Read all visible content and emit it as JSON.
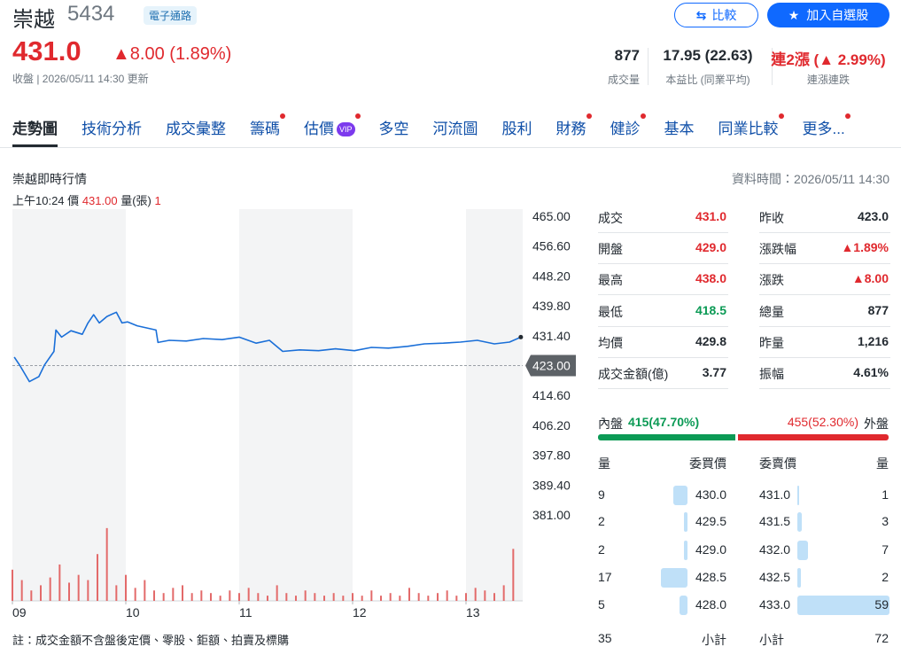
{
  "header": {
    "name": "崇越",
    "code": "5434",
    "tag": "電子通路",
    "price": "431.0",
    "change": "▲8.00 (1.89%)",
    "status": "收盤 | 2026/05/11 14:30 更新",
    "compare": "比較",
    "watch": "加入自選股",
    "stats": [
      {
        "value": "877",
        "label": "成交量"
      },
      {
        "value": "17.95 (22.63)",
        "label": "本益比 (同業平均)"
      },
      {
        "value": "連2漲 (▲ 2.99%)",
        "label": "連漲連跌"
      }
    ]
  },
  "tabs": [
    {
      "label": "走勢圖",
      "active": true
    },
    {
      "label": "技術分析"
    },
    {
      "label": "成交彙整"
    },
    {
      "label": "籌碼",
      "dot": true
    },
    {
      "label": "估價",
      "badge": "VIP",
      "dot": true
    },
    {
      "label": "多空"
    },
    {
      "label": "河流圖"
    },
    {
      "label": "股利"
    },
    {
      "label": "財務",
      "dot": true
    },
    {
      "label": "健診",
      "dot": true
    },
    {
      "label": "基本"
    },
    {
      "label": "同業比較",
      "dot": true
    },
    {
      "label": "更多...",
      "dot": true
    }
  ],
  "section": {
    "title": "崇越即時行情",
    "time": "資料時間：2026/05/11 14:30"
  },
  "hover": {
    "time": "上午10:24",
    "price_label": "價",
    "price": "431.00",
    "vol_label": "量(張)",
    "vol": "1"
  },
  "chart_data": {
    "type": "line",
    "xlim": [
      0,
      270
    ],
    "xticks": [
      {
        "value": 0,
        "label": "09"
      },
      {
        "value": 60,
        "label": "10"
      },
      {
        "value": 120,
        "label": "11"
      },
      {
        "value": 180,
        "label": "12"
      },
      {
        "value": 240,
        "label": "13"
      }
    ],
    "ylim": [
      381,
      465
    ],
    "yticks": [
      {
        "value": 465,
        "label": "465.00"
      },
      {
        "value": 456.6,
        "label": "456.60"
      },
      {
        "value": 448.2,
        "label": "448.20"
      },
      {
        "value": 439.8,
        "label": "439.80"
      },
      {
        "value": 431.4,
        "label": "431.40"
      },
      {
        "value": 423,
        "label": "423.00"
      },
      {
        "value": 414.6,
        "label": "414.60"
      },
      {
        "value": 406.2,
        "label": "406.20"
      },
      {
        "value": 397.8,
        "label": "397.80"
      },
      {
        "value": 389.4,
        "label": "389.40"
      },
      {
        "value": 381,
        "label": "381.00"
      }
    ],
    "ref_line": 423,
    "y2lim": [
      0,
      30
    ],
    "series": [
      {
        "color": "#1a6fd8",
        "x": [
          1,
          4,
          9,
          14,
          17,
          22,
          23,
          26,
          31,
          37,
          40,
          43,
          46,
          50,
          55,
          58,
          61,
          66,
          71,
          76,
          77,
          83,
          92,
          101,
          111,
          120,
          129,
          136,
          143,
          152,
          162,
          171,
          181,
          190,
          199,
          209,
          218,
          228,
          237,
          246,
          255,
          263,
          269
        ],
        "values": [
          425.4,
          423,
          418.5,
          419.9,
          423.2,
          427,
          433,
          431,
          432.8,
          431.8,
          435,
          437.3,
          435,
          436.8,
          438,
          435,
          435.3,
          434.2,
          433.6,
          433,
          429.5,
          430.1,
          429.9,
          430.6,
          430.3,
          431,
          429.3,
          430.1,
          427,
          427.4,
          427.2,
          427.7,
          427.2,
          428.1,
          427.9,
          428.4,
          429.1,
          429.3,
          429.6,
          430.1,
          429.1,
          429.6,
          431
        ]
      },
      {
        "color": "#e36a6a",
        "axis": "y2",
        "x": [
          0,
          5,
          10,
          15,
          20,
          25,
          30,
          35,
          40,
          45,
          50,
          55,
          60,
          65,
          70,
          75,
          80,
          85,
          90,
          95,
          100,
          105,
          110,
          115,
          120,
          125,
          130,
          135,
          140,
          145,
          150,
          155,
          160,
          165,
          170,
          175,
          180,
          185,
          190,
          195,
          200,
          205,
          210,
          215,
          220,
          225,
          230,
          235,
          240,
          245,
          250,
          255,
          260,
          265
        ],
        "values": [
          12,
          8,
          4,
          6,
          9,
          14,
          7,
          10,
          8,
          18,
          28,
          6,
          10,
          5,
          8,
          4,
          3,
          5,
          6,
          3,
          4,
          3,
          2,
          4,
          3,
          5,
          3,
          2,
          6,
          3,
          2,
          4,
          3,
          2,
          3,
          2,
          3,
          2,
          4,
          2,
          3,
          2,
          5,
          3,
          2,
          3,
          4,
          2,
          3,
          5,
          4,
          3,
          6,
          20
        ]
      }
    ]
  },
  "quote": [
    {
      "left": {
        "label": "成交",
        "value": "431.0",
        "tone": "up"
      },
      "right": {
        "label": "昨收",
        "value": "423.0"
      }
    },
    {
      "left": {
        "label": "開盤",
        "value": "429.0",
        "tone": "up"
      },
      "right": {
        "label": "漲跌幅",
        "value": "▲1.89%",
        "tone": "up"
      }
    },
    {
      "left": {
        "label": "最高",
        "value": "438.0",
        "tone": "up"
      },
      "right": {
        "label": "漲跌",
        "value": "▲8.00",
        "tone": "up"
      }
    },
    {
      "left": {
        "label": "最低",
        "value": "418.5",
        "tone": "down"
      },
      "right": {
        "label": "總量",
        "value": "877"
      }
    },
    {
      "left": {
        "label": "均價",
        "value": "429.8"
      },
      "right": {
        "label": "昨量",
        "value": "1,216"
      }
    },
    {
      "left": {
        "label": "成交金額(億)",
        "value": "3.77"
      },
      "right": {
        "label": "振幅",
        "value": "4.61%"
      }
    }
  ],
  "flow": {
    "buy": {
      "label": "內盤",
      "value": 415,
      "value_label": "415(47.70%)"
    },
    "sell": {
      "label": "外盤",
      "value": 455,
      "value_label": "455(52.30%)"
    }
  },
  "book": {
    "headers": [
      "量",
      "委買價",
      "委賣價",
      "量"
    ],
    "rows": [
      {
        "bid_vol": 9,
        "bid": "430.0",
        "ask": "431.0",
        "ask_vol": 1
      },
      {
        "bid_vol": 2,
        "bid": "429.5",
        "ask": "431.5",
        "ask_vol": 3
      },
      {
        "bid_vol": 2,
        "bid": "429.0",
        "ask": "432.0",
        "ask_vol": 7
      },
      {
        "bid_vol": 17,
        "bid": "428.5",
        "ask": "432.5",
        "ask_vol": 2
      },
      {
        "bid_vol": 5,
        "bid": "428.0",
        "ask": "433.0",
        "ask_vol": 59
      }
    ],
    "bid_total": 35,
    "total_label": "小計",
    "ask_total": 72
  },
  "note": "註：成交金額不含盤後定價、零股、鉅額、拍賣及標購"
}
